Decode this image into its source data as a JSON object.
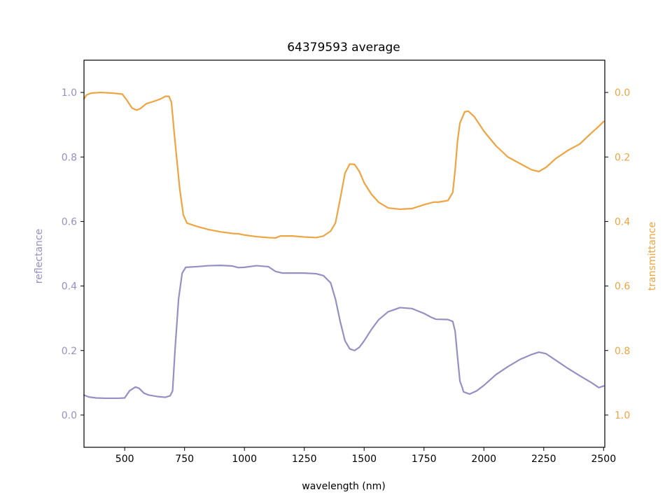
{
  "chart_data": {
    "type": "line",
    "title": "64379593 average",
    "xlabel": "wavelength (nm)",
    "ylabel_left": "reflectance",
    "ylabel_right": "transmittance",
    "xlim": [
      330,
      2505
    ],
    "ylim_left": [
      -0.1,
      1.1
    ],
    "ylim_right": [
      1.1,
      -0.1
    ],
    "right_axis_inverted": true,
    "grid": false,
    "x_ticks": [
      500,
      750,
      1000,
      1250,
      1500,
      1750,
      2000,
      2250,
      2500
    ],
    "y_ticks_left": [
      0.0,
      0.2,
      0.4,
      0.6,
      0.8,
      1.0
    ],
    "y_ticks_right": [
      0.0,
      0.2,
      0.4,
      0.6,
      0.8,
      1.0
    ],
    "colors": {
      "reflectance": "#9590c3",
      "transmittance": "#eea441"
    },
    "series": [
      {
        "axis": "left",
        "color": "#9590c3",
        "points": [
          [
            330,
            0.062
          ],
          [
            350,
            0.056
          ],
          [
            380,
            0.053
          ],
          [
            420,
            0.052
          ],
          [
            470,
            0.052
          ],
          [
            500,
            0.053
          ],
          [
            520,
            0.075
          ],
          [
            545,
            0.087
          ],
          [
            560,
            0.083
          ],
          [
            580,
            0.068
          ],
          [
            600,
            0.062
          ],
          [
            640,
            0.057
          ],
          [
            670,
            0.055
          ],
          [
            690,
            0.06
          ],
          [
            700,
            0.075
          ],
          [
            710,
            0.2
          ],
          [
            725,
            0.36
          ],
          [
            740,
            0.44
          ],
          [
            755,
            0.458
          ],
          [
            800,
            0.46
          ],
          [
            850,
            0.463
          ],
          [
            900,
            0.464
          ],
          [
            950,
            0.462
          ],
          [
            975,
            0.457
          ],
          [
            1000,
            0.458
          ],
          [
            1050,
            0.463
          ],
          [
            1100,
            0.46
          ],
          [
            1130,
            0.445
          ],
          [
            1160,
            0.44
          ],
          [
            1200,
            0.44
          ],
          [
            1250,
            0.44
          ],
          [
            1300,
            0.438
          ],
          [
            1330,
            0.432
          ],
          [
            1360,
            0.41
          ],
          [
            1380,
            0.36
          ],
          [
            1400,
            0.29
          ],
          [
            1420,
            0.23
          ],
          [
            1440,
            0.205
          ],
          [
            1460,
            0.2
          ],
          [
            1480,
            0.21
          ],
          [
            1500,
            0.23
          ],
          [
            1530,
            0.265
          ],
          [
            1560,
            0.295
          ],
          [
            1600,
            0.32
          ],
          [
            1650,
            0.333
          ],
          [
            1700,
            0.33
          ],
          [
            1750,
            0.315
          ],
          [
            1780,
            0.303
          ],
          [
            1800,
            0.297
          ],
          [
            1850,
            0.296
          ],
          [
            1870,
            0.29
          ],
          [
            1880,
            0.26
          ],
          [
            1890,
            0.18
          ],
          [
            1900,
            0.105
          ],
          [
            1910,
            0.085
          ],
          [
            1915,
            0.072
          ],
          [
            1940,
            0.065
          ],
          [
            1970,
            0.075
          ],
          [
            2000,
            0.092
          ],
          [
            2050,
            0.125
          ],
          [
            2100,
            0.15
          ],
          [
            2150,
            0.172
          ],
          [
            2200,
            0.188
          ],
          [
            2230,
            0.195
          ],
          [
            2260,
            0.19
          ],
          [
            2300,
            0.17
          ],
          [
            2350,
            0.145
          ],
          [
            2400,
            0.122
          ],
          [
            2450,
            0.1
          ],
          [
            2480,
            0.085
          ],
          [
            2500,
            0.09
          ]
        ]
      },
      {
        "axis": "right",
        "color": "#eea441",
        "points": [
          [
            330,
            0.02
          ],
          [
            340,
            0.008
          ],
          [
            360,
            0.002
          ],
          [
            400,
            0.0
          ],
          [
            450,
            0.002
          ],
          [
            490,
            0.005
          ],
          [
            510,
            0.025
          ],
          [
            530,
            0.048
          ],
          [
            550,
            0.055
          ],
          [
            565,
            0.05
          ],
          [
            590,
            0.035
          ],
          [
            620,
            0.028
          ],
          [
            650,
            0.02
          ],
          [
            670,
            0.012
          ],
          [
            685,
            0.012
          ],
          [
            695,
            0.03
          ],
          [
            710,
            0.15
          ],
          [
            730,
            0.3
          ],
          [
            745,
            0.38
          ],
          [
            760,
            0.405
          ],
          [
            800,
            0.415
          ],
          [
            850,
            0.425
          ],
          [
            900,
            0.432
          ],
          [
            950,
            0.437
          ],
          [
            975,
            0.438
          ],
          [
            1000,
            0.442
          ],
          [
            1050,
            0.447
          ],
          [
            1100,
            0.45
          ],
          [
            1130,
            0.451
          ],
          [
            1150,
            0.445
          ],
          [
            1200,
            0.445
          ],
          [
            1250,
            0.448
          ],
          [
            1300,
            0.45
          ],
          [
            1330,
            0.445
          ],
          [
            1360,
            0.43
          ],
          [
            1380,
            0.405
          ],
          [
            1400,
            0.33
          ],
          [
            1420,
            0.25
          ],
          [
            1440,
            0.222
          ],
          [
            1460,
            0.223
          ],
          [
            1480,
            0.245
          ],
          [
            1500,
            0.28
          ],
          [
            1530,
            0.315
          ],
          [
            1560,
            0.34
          ],
          [
            1600,
            0.358
          ],
          [
            1650,
            0.362
          ],
          [
            1700,
            0.36
          ],
          [
            1750,
            0.348
          ],
          [
            1790,
            0.34
          ],
          [
            1810,
            0.34
          ],
          [
            1850,
            0.335
          ],
          [
            1870,
            0.31
          ],
          [
            1880,
            0.24
          ],
          [
            1890,
            0.15
          ],
          [
            1900,
            0.095
          ],
          [
            1920,
            0.06
          ],
          [
            1935,
            0.058
          ],
          [
            1960,
            0.075
          ],
          [
            2000,
            0.12
          ],
          [
            2050,
            0.165
          ],
          [
            2100,
            0.2
          ],
          [
            2150,
            0.22
          ],
          [
            2200,
            0.24
          ],
          [
            2230,
            0.245
          ],
          [
            2260,
            0.232
          ],
          [
            2300,
            0.205
          ],
          [
            2350,
            0.18
          ],
          [
            2400,
            0.16
          ],
          [
            2450,
            0.125
          ],
          [
            2480,
            0.105
          ],
          [
            2500,
            0.09
          ]
        ]
      }
    ]
  }
}
